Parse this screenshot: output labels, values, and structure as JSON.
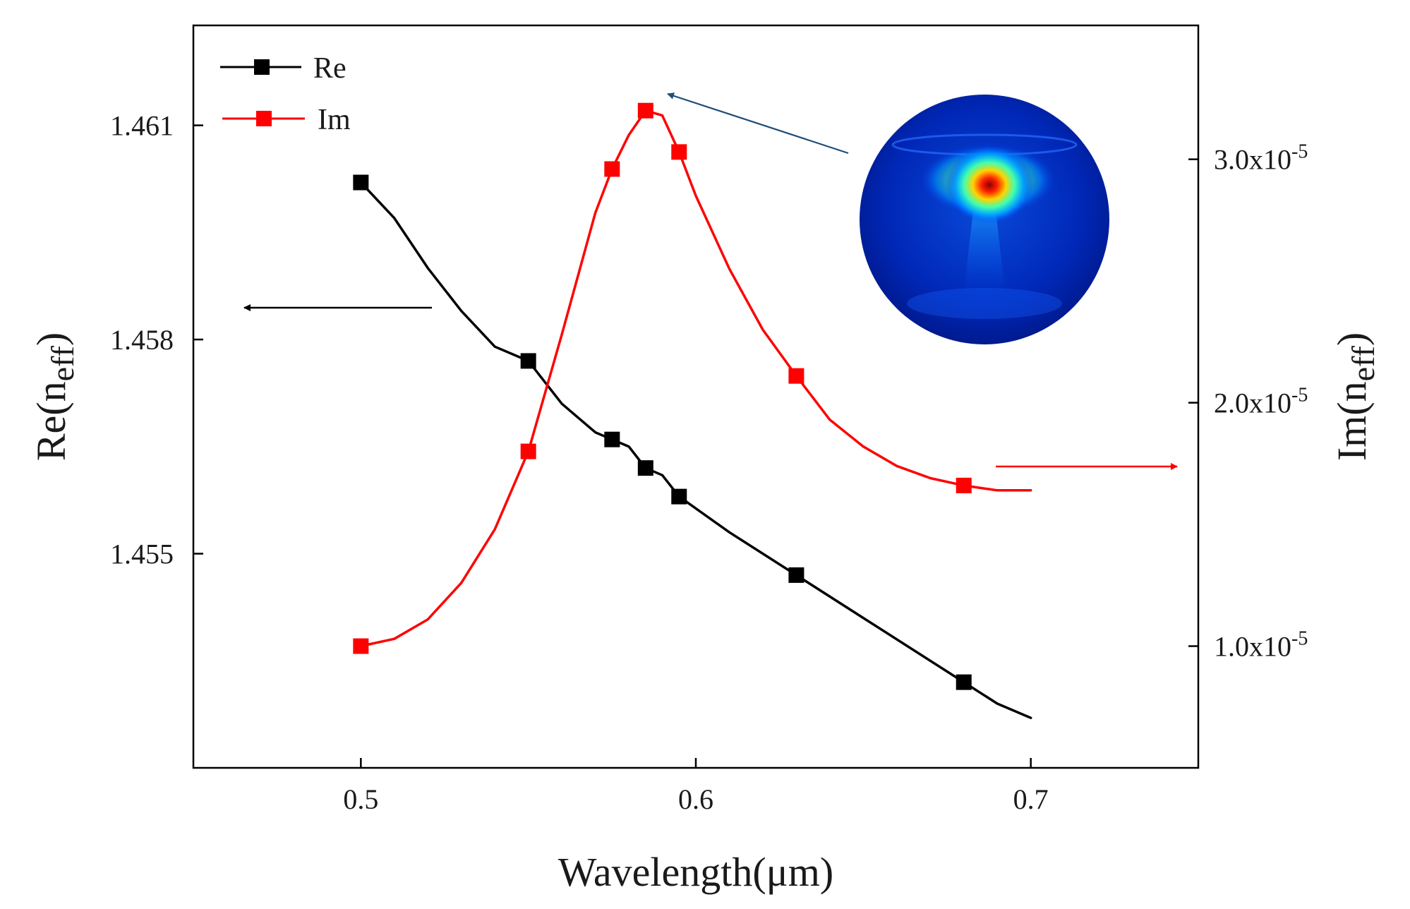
{
  "chart_data": {
    "type": "line",
    "title": "",
    "xlabel": "Wavelength(μm)",
    "x_ticks": [
      "0.5",
      "0.6",
      "0.7"
    ],
    "xlim": [
      0.45,
      0.75
    ],
    "left_axis": {
      "label_base": "Re(n",
      "label_sub": "eff",
      "label_end": ")",
      "ylim": [
        1.452,
        1.4624
      ],
      "ticks": [
        "1.455",
        "1.458",
        "1.461"
      ]
    },
    "right_axis": {
      "label_base": "Im(n",
      "label_sub": "eff",
      "label_end": ")",
      "ylim": [
        5e-06,
        3.55e-05
      ],
      "ticks": [
        {
          "value": 1e-05,
          "base": "1.0x10",
          "exp": "-5"
        },
        {
          "value": 2e-05,
          "base": "2.0x10",
          "exp": "-5"
        },
        {
          "value": 3e-05,
          "base": "3.0x10",
          "exp": "-5"
        }
      ]
    },
    "series": [
      {
        "name": "Re",
        "axis": "left",
        "color": "#000000",
        "markers": [
          [
            0.5,
            1.4602
          ],
          [
            0.55,
            1.4577
          ],
          [
            0.575,
            1.4566
          ],
          [
            0.585,
            1.4562
          ],
          [
            0.595,
            1.4558
          ],
          [
            0.63,
            1.4547
          ],
          [
            0.68,
            1.4532
          ]
        ],
        "curve": [
          [
            0.5,
            1.4602
          ],
          [
            0.51,
            1.4597
          ],
          [
            0.52,
            1.459
          ],
          [
            0.53,
            1.4584
          ],
          [
            0.54,
            1.4579
          ],
          [
            0.55,
            1.4577
          ],
          [
            0.56,
            1.4571
          ],
          [
            0.57,
            1.4567
          ],
          [
            0.575,
            1.4566
          ],
          [
            0.58,
            1.4565
          ],
          [
            0.585,
            1.4562
          ],
          [
            0.59,
            1.4561
          ],
          [
            0.595,
            1.4558
          ],
          [
            0.61,
            1.4553
          ],
          [
            0.63,
            1.4547
          ],
          [
            0.65,
            1.4541
          ],
          [
            0.68,
            1.4532
          ],
          [
            0.69,
            1.4529
          ],
          [
            0.7,
            1.4527
          ]
        ]
      },
      {
        "name": "Im",
        "axis": "right",
        "color": "#ff0000",
        "markers": [
          [
            0.5,
            1e-05
          ],
          [
            0.55,
            1.8e-05
          ],
          [
            0.575,
            2.96e-05
          ],
          [
            0.585,
            3.2e-05
          ],
          [
            0.595,
            3.03e-05
          ],
          [
            0.63,
            2.11e-05
          ],
          [
            0.68,
            1.66e-05
          ]
        ],
        "curve": [
          [
            0.5,
            1e-05
          ],
          [
            0.51,
            1.03e-05
          ],
          [
            0.52,
            1.11e-05
          ],
          [
            0.53,
            1.26e-05
          ],
          [
            0.54,
            1.48e-05
          ],
          [
            0.55,
            1.8e-05
          ],
          [
            0.56,
            2.28e-05
          ],
          [
            0.57,
            2.78e-05
          ],
          [
            0.575,
            2.96e-05
          ],
          [
            0.58,
            3.1e-05
          ],
          [
            0.585,
            3.2e-05
          ],
          [
            0.59,
            3.18e-05
          ],
          [
            0.595,
            3.03e-05
          ],
          [
            0.6,
            2.85e-05
          ],
          [
            0.61,
            2.55e-05
          ],
          [
            0.62,
            2.3e-05
          ],
          [
            0.63,
            2.11e-05
          ],
          [
            0.64,
            1.93e-05
          ],
          [
            0.65,
            1.82e-05
          ],
          [
            0.66,
            1.74e-05
          ],
          [
            0.67,
            1.69e-05
          ],
          [
            0.68,
            1.66e-05
          ],
          [
            0.69,
            1.64e-05
          ],
          [
            0.7,
            1.64e-05
          ]
        ]
      }
    ],
    "legend": {
      "position": "top-left",
      "entries": [
        "Re",
        "Im"
      ]
    },
    "annotations": [
      {
        "type": "arrow",
        "meaning": "Re series belongs to left axis",
        "color": "#000000"
      },
      {
        "type": "arrow",
        "meaning": "Im series belongs to right axis",
        "color": "#ff0000"
      },
      {
        "type": "arrow",
        "meaning": "points from inset to Im peak",
        "color": "#1f4e79"
      },
      {
        "type": "inset",
        "meaning": "mode field distribution at resonance"
      }
    ],
    "grid": false
  }
}
